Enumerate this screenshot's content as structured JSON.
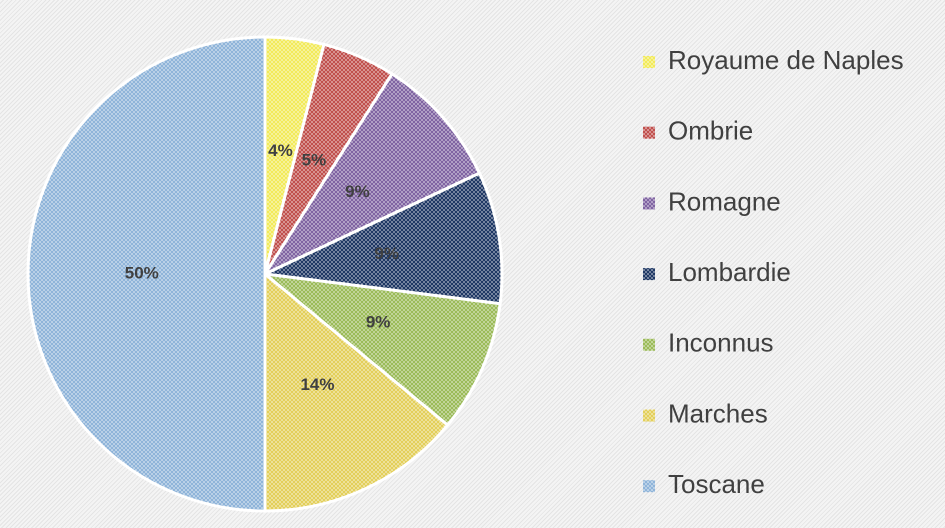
{
  "chart_data": {
    "type": "pie",
    "categories": [
      "Royaume de Naples",
      "Ombrie",
      "Romagne",
      "Lombardie",
      "Inconnus",
      "Marches",
      "Toscane"
    ],
    "values": [
      4,
      5,
      9,
      9,
      9,
      14,
      50
    ],
    "value_labels": [
      "4%",
      "5%",
      "9%",
      "9%",
      "9%",
      "14%",
      "50%"
    ],
    "colors": [
      "#f2ea5a",
      "#c0504d",
      "#8064a2",
      "#1f3864",
      "#9bbb59",
      "#e3cf5a",
      "#8fb4d9"
    ],
    "legend": "right"
  }
}
